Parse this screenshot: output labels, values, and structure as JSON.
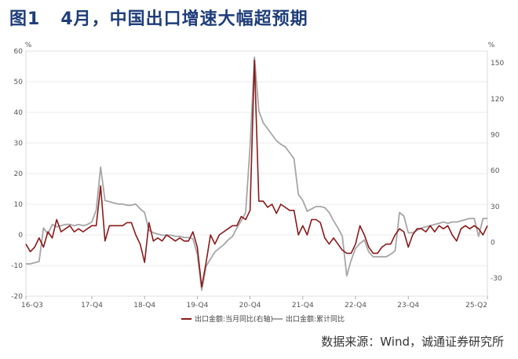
{
  "header": {
    "fig_no": "图1",
    "title": "4月，中国出口增速大幅超预期"
  },
  "source_text": "数据来源：Wind，诚通证券研究所",
  "chart_data": {
    "type": "line",
    "xlabel": "",
    "y_unit_left": "%",
    "y_unit_right": "%",
    "ylim_left": [
      -20,
      60
    ],
    "ylim_right": [
      -45,
      160
    ],
    "yticks_left": [
      -20,
      -10,
      0,
      10,
      20,
      30,
      40,
      50,
      60
    ],
    "yticks_right": [
      -30,
      0,
      30,
      60,
      90,
      120,
      150
    ],
    "x_ticks": [
      "16-Q3",
      "17-Q4",
      "18-Q4",
      "19-Q4",
      "20-Q4",
      "21-Q4",
      "22-Q4",
      "23-Q4",
      "25-Q2"
    ],
    "x_tick_index": [
      0,
      15,
      27,
      39,
      51,
      63,
      75,
      87,
      105
    ],
    "grid": true,
    "legend_position": "bottom",
    "series": [
      {
        "name": "出口金额:当月同比(右轴)",
        "axis": "left",
        "color": "#8b1a1a",
        "values": [
          -3,
          -5.5,
          -4,
          -1,
          -4,
          1,
          -1,
          5,
          1,
          2,
          3,
          1,
          2,
          1,
          2,
          3,
          3,
          16,
          -2,
          3,
          3,
          3,
          3,
          4,
          4,
          0,
          -3,
          -9,
          4,
          -2,
          -1,
          -2,
          0,
          -1,
          -2,
          -1,
          -2,
          -2,
          1,
          -4,
          -17,
          -9,
          0,
          -3,
          0,
          1,
          2,
          3,
          3,
          6,
          5,
          8,
          57,
          11,
          11,
          9,
          10,
          7,
          10,
          9,
          8,
          8,
          0,
          3,
          0,
          5,
          5,
          4,
          -1,
          -3,
          -1,
          -3,
          -5,
          -6,
          -6,
          -3,
          3,
          0,
          -4,
          -6,
          -6,
          -4,
          -3,
          -3,
          0,
          2,
          1,
          -4,
          0,
          2,
          2,
          1,
          3,
          1,
          3,
          2,
          3,
          0,
          -2,
          2,
          3,
          2,
          3,
          2,
          0,
          3
        ]
      },
      {
        "name": "出口金额:累计同比",
        "axis": "right",
        "color": "#a6a6a6",
        "values": [
          -18,
          -18,
          -17,
          -16,
          12,
          7,
          15,
          13,
          14,
          15,
          15,
          14,
          15,
          14,
          15,
          17,
          27,
          63,
          35,
          34,
          33,
          32,
          32,
          31,
          31,
          32,
          28,
          25,
          10,
          8,
          7,
          6,
          6,
          6,
          5,
          5,
          4,
          4,
          3,
          -10,
          -40,
          -20,
          -14,
          -8,
          -5,
          -2,
          2,
          5,
          12,
          18,
          25,
          80,
          155,
          110,
          100,
          95,
          90,
          85,
          82,
          80,
          75,
          70,
          40,
          35,
          26,
          28,
          30,
          30,
          29,
          25,
          18,
          12,
          5,
          -28,
          -15,
          -5,
          -1,
          2,
          -8,
          -12,
          -12,
          -12,
          -12,
          -10,
          -7,
          25,
          22,
          8,
          8,
          10,
          12,
          13,
          14,
          15,
          16,
          17,
          16,
          17,
          17,
          18,
          19,
          20,
          20,
          5,
          20,
          20
        ]
      }
    ]
  }
}
